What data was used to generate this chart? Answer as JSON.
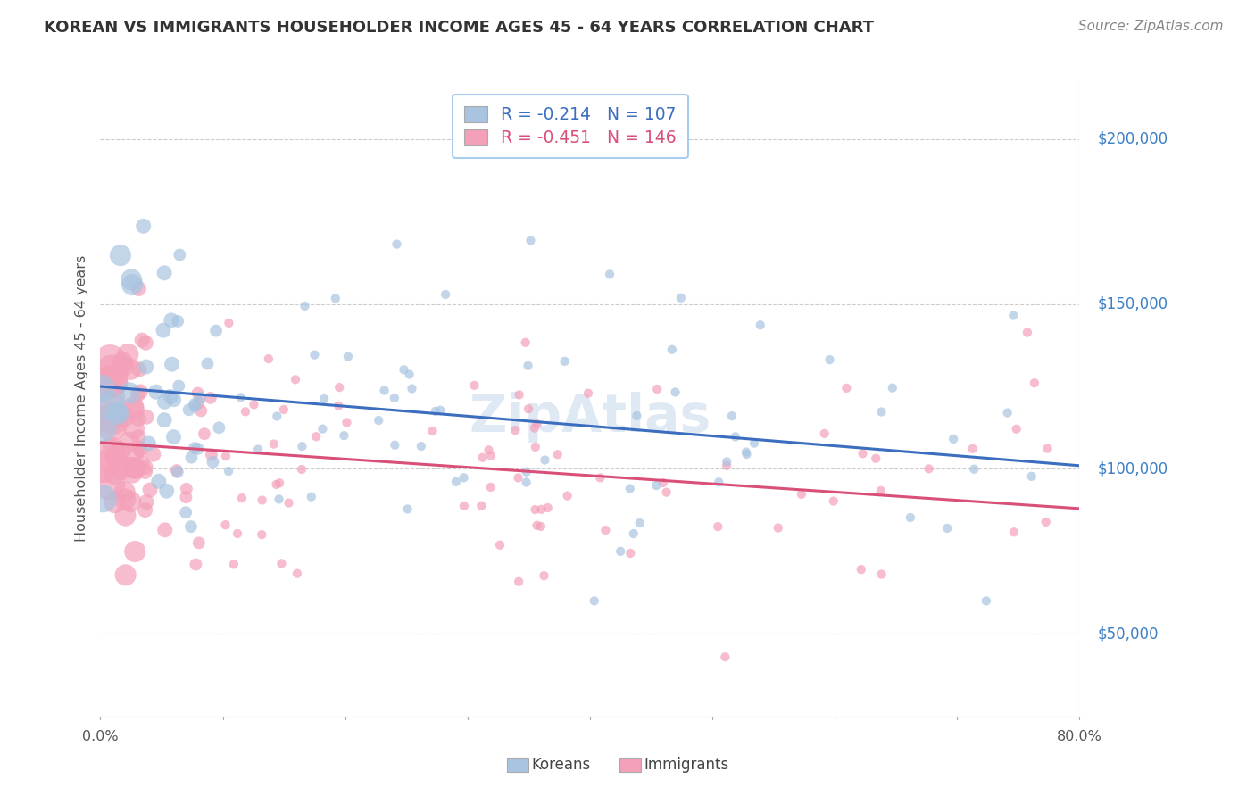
{
  "title": "KOREAN VS IMMIGRANTS HOUSEHOLDER INCOME AGES 45 - 64 YEARS CORRELATION CHART",
  "source": "Source: ZipAtlas.com",
  "ylabel": "Householder Income Ages 45 - 64 years",
  "title_color": "#333333",
  "source_color": "#888888",
  "korean_color": "#a8c4e0",
  "korean_line_color": "#3c6ebf",
  "immigrant_color": "#f4a0b8",
  "immigrant_line_color": "#d94f78",
  "watermark": "ZipAtlas",
  "watermark_color": "#c5d8ec",
  "ytick_labels": [
    "$50,000",
    "$100,000",
    "$150,000",
    "$200,000"
  ],
  "ytick_values": [
    50000,
    100000,
    150000,
    200000
  ],
  "ytick_color": "#3c7fc4",
  "xmin": 0.0,
  "xmax": 0.8,
  "ymin": 25000,
  "ymax": 218000,
  "korean_R": -0.214,
  "korean_N": 107,
  "immigrant_R": -0.451,
  "immigrant_N": 146,
  "k_intercept": 125000,
  "k_slope": -30000,
  "i_intercept": 108000,
  "i_slope": -25000
}
